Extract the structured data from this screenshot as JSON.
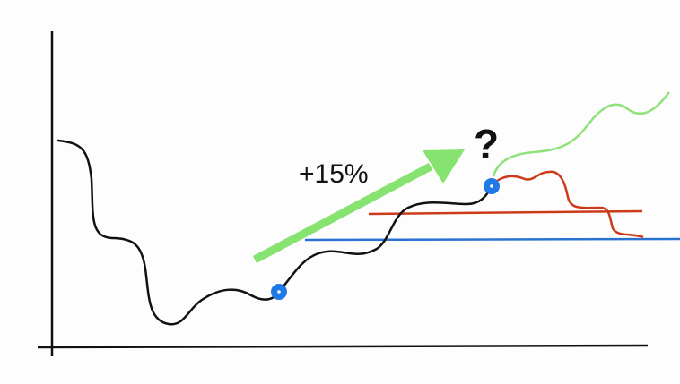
{
  "annotations": {
    "growth_label": "+15%",
    "question_mark": "?"
  },
  "colors": {
    "main_curve": "#111111",
    "growth_arrow": "#86e36f",
    "optimistic_curve": "#8ee27a",
    "pessimistic_curve": "#cc3a1a",
    "red_level_line": "#cc3a1a",
    "blue_level_line": "#2a72d2",
    "markers": "#1f7ae8"
  }
}
